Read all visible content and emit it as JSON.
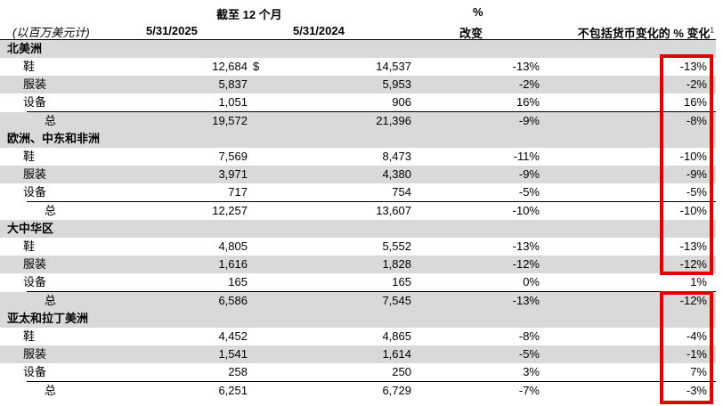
{
  "header": {
    "period": "截至 12 个月",
    "pct_symbol": "%",
    "units": "(以百万美元计)",
    "col_2025": "5/31/2025",
    "col_2024": "5/31/2024",
    "col_change": "改变",
    "col_fx": "不包括货币变化的 % 变化",
    "col_fx_note": "1"
  },
  "currency_symbol": "$",
  "sections": [
    {
      "name": "北美洲",
      "rows": [
        {
          "label": "鞋",
          "v2025": "12,684",
          "v2024": "14,537",
          "change": "-13%",
          "fx": "-13%"
        },
        {
          "label": "服装",
          "v2025": "5,837",
          "v2024": "5,953",
          "change": "-2%",
          "fx": "-2%"
        },
        {
          "label": "设备",
          "v2025": "1,051",
          "v2024": "906",
          "change": "16%",
          "fx": "16%"
        }
      ],
      "total": {
        "label": "总",
        "v2025": "19,572",
        "v2024": "21,396",
        "change": "-9%",
        "fx": "-8%"
      }
    },
    {
      "name": "欧洲、中东和非洲",
      "rows": [
        {
          "label": "鞋",
          "v2025": "7,569",
          "v2024": "8,473",
          "change": "-11%",
          "fx": "-10%"
        },
        {
          "label": "服装",
          "v2025": "3,971",
          "v2024": "4,380",
          "change": "-9%",
          "fx": "-9%"
        },
        {
          "label": "设备",
          "v2025": "717",
          "v2024": "754",
          "change": "-5%",
          "fx": "-5%"
        }
      ],
      "total": {
        "label": "总",
        "v2025": "12,257",
        "v2024": "13,607",
        "change": "-10%",
        "fx": "-10%"
      }
    },
    {
      "name": "大中华区",
      "rows": [
        {
          "label": "鞋",
          "v2025": "4,805",
          "v2024": "5,552",
          "change": "-13%",
          "fx": "-13%"
        },
        {
          "label": "服装",
          "v2025": "1,616",
          "v2024": "1,828",
          "change": "-12%",
          "fx": "-12%"
        },
        {
          "label": "设备",
          "v2025": "165",
          "v2024": "165",
          "change": "0%",
          "fx": "1%"
        }
      ],
      "total": {
        "label": "总",
        "v2025": "6,586",
        "v2024": "7,545",
        "change": "-13%",
        "fx": "-12%"
      }
    },
    {
      "name": "亚太和拉丁美洲",
      "rows": [
        {
          "label": "鞋",
          "v2025": "4,452",
          "v2024": "4,865",
          "change": "-8%",
          "fx": "-4%"
        },
        {
          "label": "服装",
          "v2025": "1,541",
          "v2024": "1,614",
          "change": "-5%",
          "fx": "-1%"
        },
        {
          "label": "设备",
          "v2025": "258",
          "v2024": "250",
          "change": "3%",
          "fx": "7%"
        }
      ],
      "total": {
        "label": "总",
        "v2025": "6,251",
        "v2024": "6,729",
        "change": "-7%",
        "fx": "-3%"
      }
    }
  ],
  "highlight_color": "#e00000",
  "shade_color": "#d9d9d9"
}
